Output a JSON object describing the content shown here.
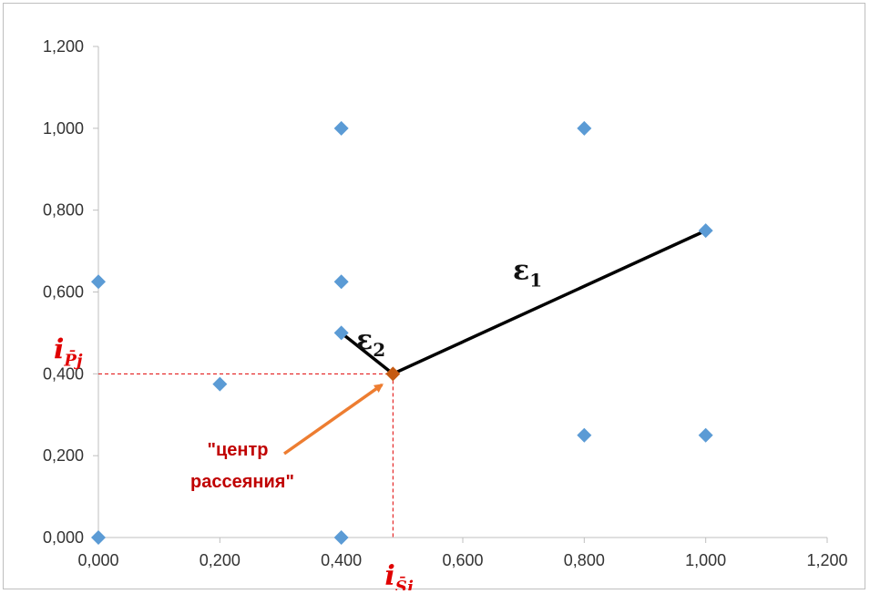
{
  "chart_data": {
    "type": "scatter",
    "xlim": [
      0,
      1.2
    ],
    "ylim": [
      0,
      1.2
    ],
    "x_ticks": [
      "0,000",
      "0,200",
      "0,400",
      "0,600",
      "0,800",
      "1,000",
      "1,200"
    ],
    "y_ticks": [
      "0,000",
      "0,200",
      "0,400",
      "0,600",
      "0,800",
      "1,000",
      "1,200"
    ],
    "grid": false,
    "marker_color": "#5b9bd5",
    "points": [
      {
        "x": 0.0,
        "y": 0.0
      },
      {
        "x": 0.0,
        "y": 0.625
      },
      {
        "x": 0.2,
        "y": 0.375
      },
      {
        "x": 0.4,
        "y": 0.0
      },
      {
        "x": 0.4,
        "y": 0.5
      },
      {
        "x": 0.4,
        "y": 0.625
      },
      {
        "x": 0.4,
        "y": 1.0
      },
      {
        "x": 0.8,
        "y": 0.25
      },
      {
        "x": 0.8,
        "y": 1.0
      },
      {
        "x": 1.0,
        "y": 0.25
      },
      {
        "x": 1.0,
        "y": 0.75
      }
    ],
    "center": {
      "x": 0.485,
      "y": 0.4,
      "color": "#c55a11"
    },
    "distances": [
      {
        "label": "ε",
        "sub": "1",
        "from": {
          "x": 0.485,
          "y": 0.4
        },
        "to": {
          "x": 1.0,
          "y": 0.75
        }
      },
      {
        "label": "ε",
        "sub": "2",
        "from": {
          "x": 0.485,
          "y": 0.4
        },
        "to": {
          "x": 0.4,
          "y": 0.5
        }
      }
    ],
    "axis_markers": {
      "x_label_main": "i",
      "x_label_sub": "S̄j",
      "y_label_main": "i",
      "y_label_sub": "P̄j",
      "color": "#e00000"
    },
    "annotation": {
      "line1": "\"центр",
      "line2": "рассеяния\"",
      "text_color": "#c00000",
      "arrow_color": "#ed7d31"
    }
  }
}
